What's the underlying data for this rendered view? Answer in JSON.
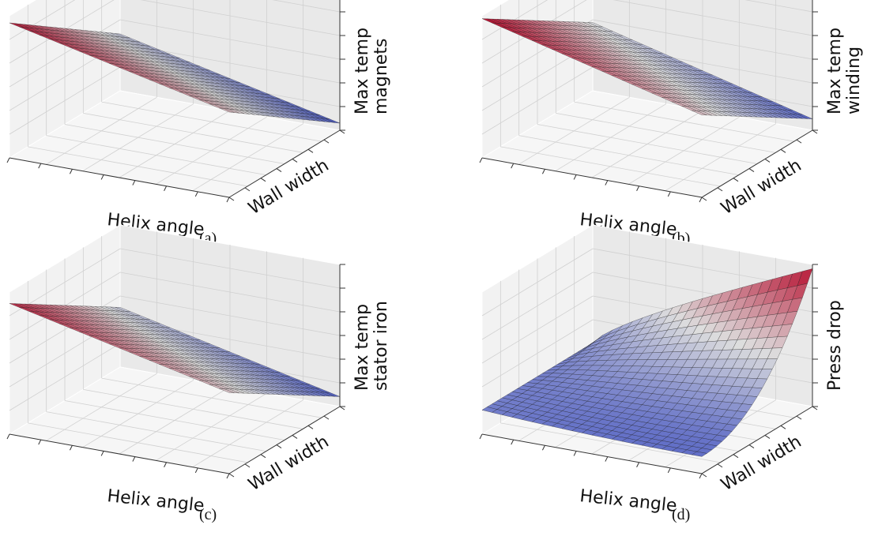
{
  "chart_data": [
    {
      "type": "surface",
      "panel_label": "(a)",
      "xlabel": "Helix angle",
      "ylabel": "Wall width",
      "zlabel_lines": [
        "Max temp",
        "magnets"
      ],
      "surface": "plane",
      "colormap": "coolwarm",
      "grid": true,
      "surface_shape": "plane decreasing from far-left corner (max) to near-right corner (min), nearly flat along Helix angle"
    },
    {
      "type": "surface",
      "panel_label": "(b)",
      "xlabel": "Helix angle",
      "ylabel": "Wall width",
      "zlabel_lines": [
        "Max temp",
        "winding"
      ],
      "surface": "plane",
      "colormap": "coolwarm",
      "grid": true,
      "surface_shape": "plane decreasing from far-left corner (max) to near-right corner (min)"
    },
    {
      "type": "surface",
      "panel_label": "(c)",
      "xlabel": "Helix angle",
      "ylabel": "Wall width",
      "zlabel_lines": [
        "Max temp",
        "stator iron"
      ],
      "surface": "plane",
      "colormap": "coolwarm",
      "grid": true,
      "surface_shape": "plane decreasing from far-left corner (max) to near-right corner (min)"
    },
    {
      "type": "surface",
      "panel_label": "(d)",
      "xlabel": "Helix angle",
      "ylabel": "Wall width",
      "zlabel_lines": [
        "Press drop"
      ],
      "surface": "bowl",
      "colormap": "coolwarm",
      "grid": true,
      "surface_shape": "mostly flat and low, rising steeply toward the far-right corner (max)"
    }
  ],
  "colors": {
    "pane_left": "#f2f2f2",
    "pane_back": "#e9e9e9",
    "pane_floor": "#f6f6f6",
    "grid": "#d0d0d0",
    "cool": "#3b4cc0",
    "neutral": "#dddddd",
    "warm": "#b40426"
  }
}
